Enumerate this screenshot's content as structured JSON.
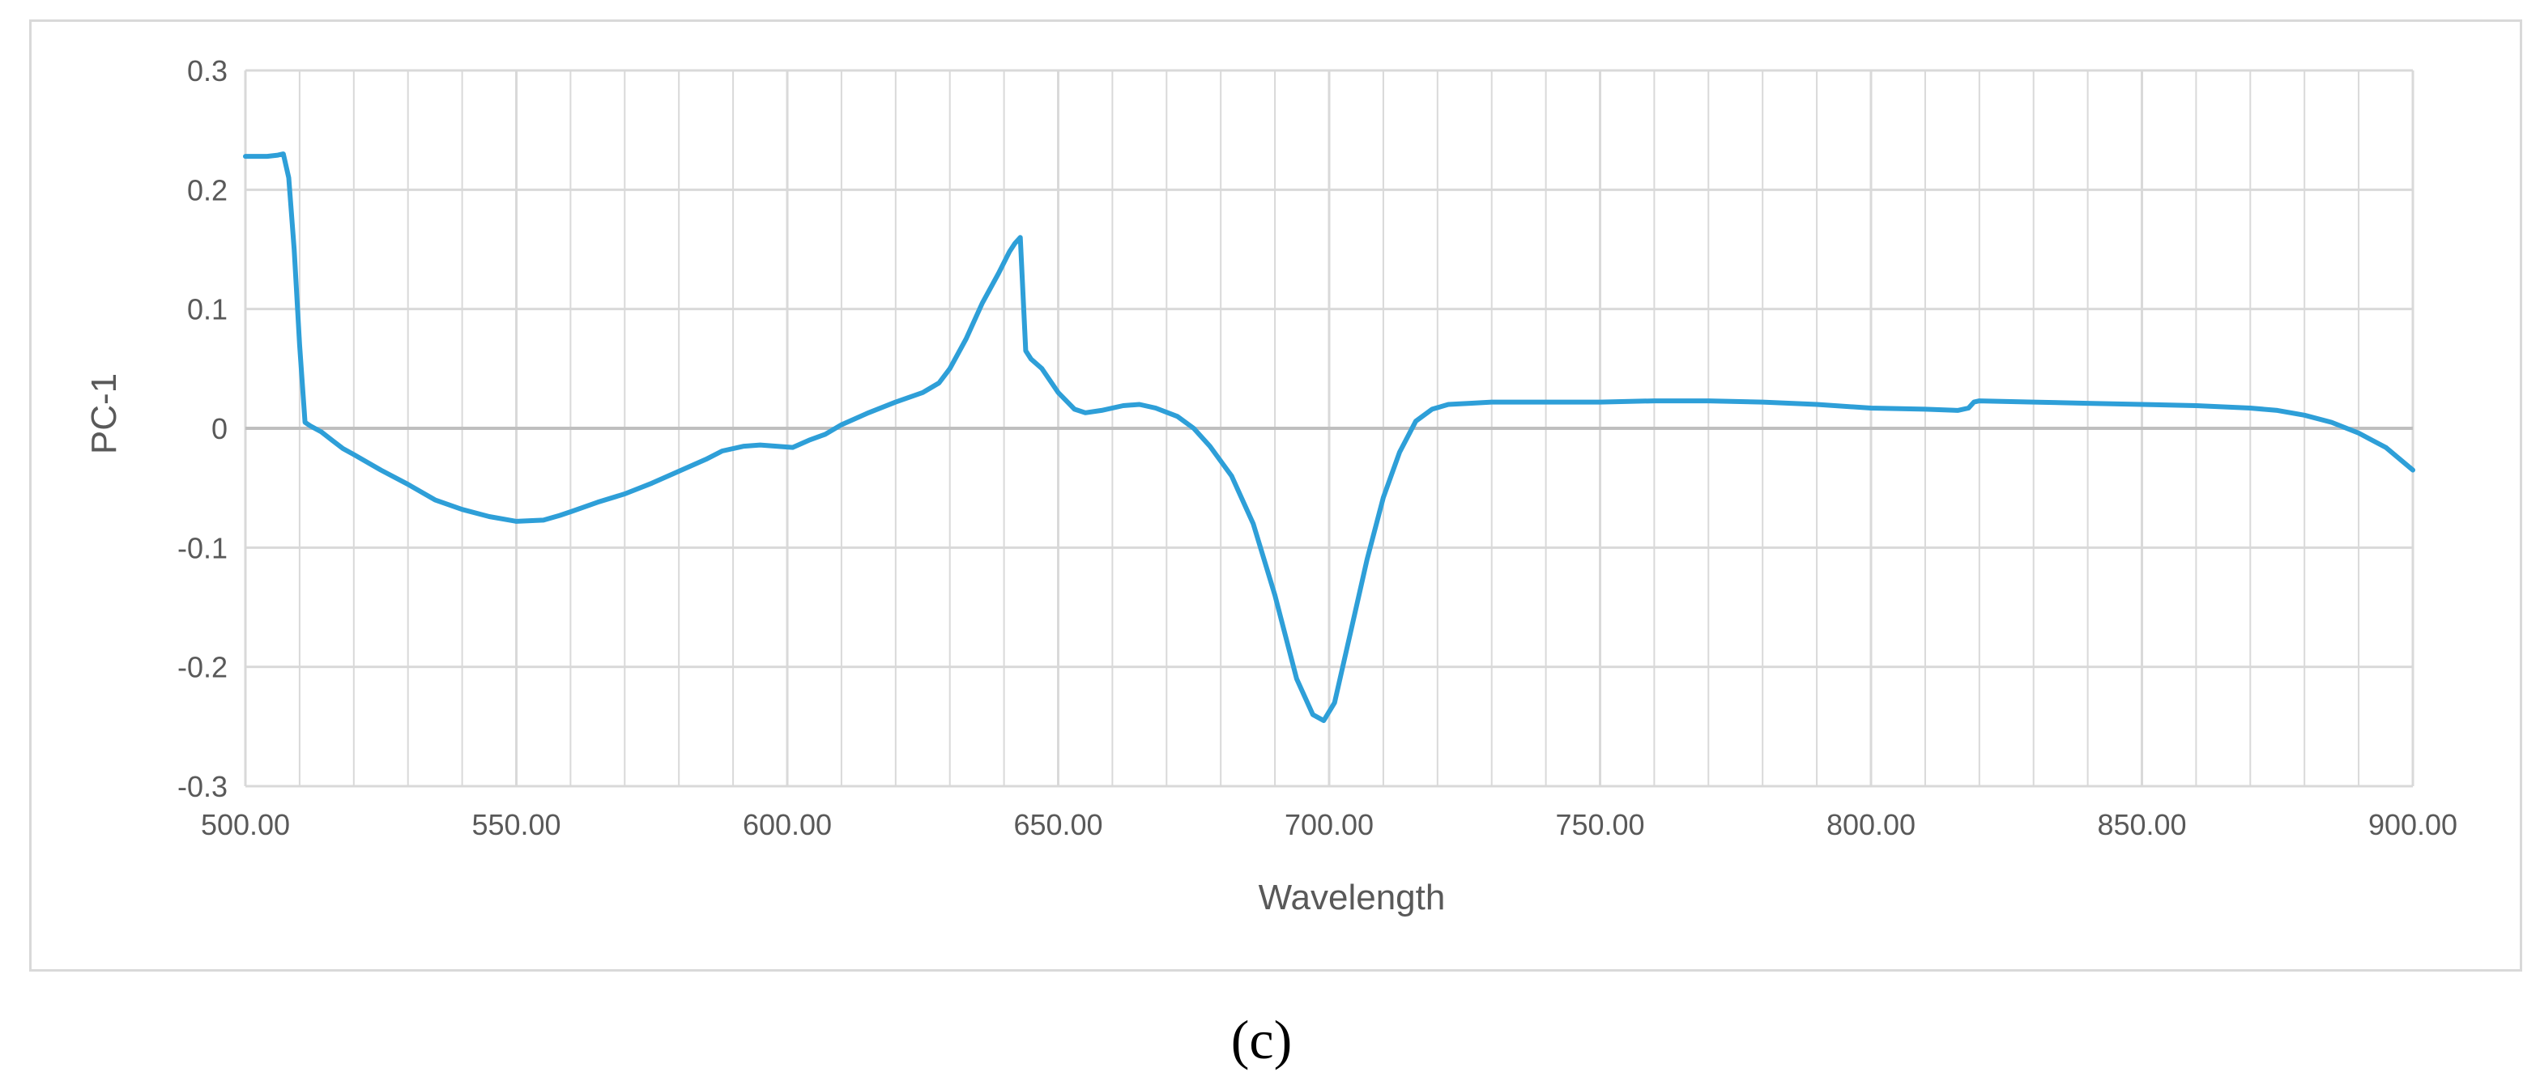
{
  "caption": "(c)",
  "chart_data": {
    "type": "line",
    "title": "",
    "xlabel": "Wavelength",
    "ylabel": "PC-1",
    "xlim": [
      500,
      900
    ],
    "ylim": [
      -0.3,
      0.3
    ],
    "x_ticks": [
      500,
      550,
      600,
      650,
      700,
      750,
      800,
      850,
      900
    ],
    "x_tick_labels": [
      "500.00",
      "550.00",
      "600.00",
      "650.00",
      "700.00",
      "750.00",
      "800.00",
      "850.00",
      "900.00"
    ],
    "y_ticks": [
      0.3,
      0.2,
      0.1,
      0,
      -0.1,
      -0.2,
      -0.3
    ],
    "y_tick_labels": [
      "0.3",
      "0.2",
      "0.1",
      "0",
      "-0.1",
      "-0.2",
      "-0.3"
    ],
    "x_minor_step": 10,
    "grid": true,
    "legend": "none",
    "colors": {
      "series": "#2e9fd8",
      "grid": "#d9d9d9",
      "zero_line": "#bfbfbf",
      "text": "#595959"
    },
    "series": [
      {
        "x": [
          500,
          502,
          504,
          506,
          507,
          508,
          509,
          510,
          511,
          512,
          514,
          516,
          518,
          520,
          525,
          530,
          535,
          540,
          545,
          550,
          555,
          558,
          560,
          565,
          570,
          575,
          580,
          585,
          588,
          592,
          595,
          598,
          601,
          604,
          607,
          610,
          615,
          620,
          625,
          628,
          630,
          633,
          636,
          639,
          641,
          642,
          643,
          644,
          645,
          647,
          650,
          653,
          655,
          658,
          662,
          665,
          668,
          672,
          675,
          678,
          682,
          686,
          690,
          694,
          697,
          699,
          701,
          704,
          707,
          710,
          713,
          716,
          719,
          722,
          726,
          730,
          740,
          750,
          760,
          770,
          780,
          790,
          800,
          810,
          816,
          818,
          819,
          820,
          830,
          840,
          850,
          860,
          870,
          875,
          880,
          885,
          890,
          895,
          900
        ],
        "y": [
          0.228,
          0.228,
          0.228,
          0.229,
          0.23,
          0.21,
          0.15,
          0.07,
          0.005,
          0.002,
          -0.003,
          -0.01,
          -0.017,
          -0.022,
          -0.035,
          -0.047,
          -0.06,
          -0.068,
          -0.074,
          -0.078,
          -0.077,
          -0.073,
          -0.07,
          -0.062,
          -0.055,
          -0.046,
          -0.036,
          -0.026,
          -0.019,
          -0.015,
          -0.014,
          -0.015,
          -0.016,
          -0.01,
          -0.005,
          0.003,
          0.013,
          0.022,
          0.03,
          0.038,
          0.05,
          0.075,
          0.105,
          0.13,
          0.148,
          0.155,
          0.16,
          0.065,
          0.058,
          0.05,
          0.03,
          0.016,
          0.013,
          0.015,
          0.019,
          0.02,
          0.017,
          0.01,
          0.0,
          -0.015,
          -0.04,
          -0.08,
          -0.14,
          -0.21,
          -0.24,
          -0.245,
          -0.23,
          -0.17,
          -0.11,
          -0.058,
          -0.02,
          0.006,
          0.016,
          0.02,
          0.021,
          0.022,
          0.022,
          0.022,
          0.023,
          0.023,
          0.022,
          0.02,
          0.017,
          0.016,
          0.015,
          0.017,
          0.022,
          0.023,
          0.022,
          0.021,
          0.02,
          0.019,
          0.017,
          0.015,
          0.011,
          0.005,
          -0.004,
          -0.016,
          -0.035
        ]
      }
    ]
  }
}
